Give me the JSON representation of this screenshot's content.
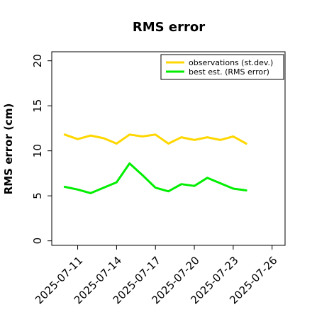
{
  "chart_data": {
    "type": "line",
    "title": "RMS error",
    "ylabel": "RMS error (cm)",
    "xlabel": "",
    "ylim": [
      -0.5,
      21
    ],
    "yticks": [
      0,
      5,
      10,
      15,
      20
    ],
    "x_dates": [
      "2025-07-10",
      "2025-07-11",
      "2025-07-12",
      "2025-07-13",
      "2025-07-14",
      "2025-07-15",
      "2025-07-16",
      "2025-07-17",
      "2025-07-18",
      "2025-07-19",
      "2025-07-20",
      "2025-07-21",
      "2025-07-22",
      "2025-07-23",
      "2025-07-24"
    ],
    "xlim": [
      "2025-07-09",
      "2025-07-27"
    ],
    "xtick_labels": [
      "2025-07-11",
      "2025-07-14",
      "2025-07-17",
      "2025-07-20",
      "2025-07-23",
      "2025-07-26"
    ],
    "xtick_colors": [
      "#000000",
      "#000000",
      "#228b22",
      "#000000",
      "#000000",
      "#000000"
    ],
    "series": [
      {
        "name": "observations (st.dev.)",
        "color": "#ffd700",
        "values": [
          11.8,
          11.3,
          11.7,
          11.4,
          10.8,
          11.8,
          11.6,
          11.8,
          10.8,
          11.5,
          11.2,
          11.5,
          11.2,
          11.6,
          10.8
        ]
      },
      {
        "name": "best est. (RMS error)",
        "color": "#00ee00",
        "values": [
          6.0,
          5.7,
          5.3,
          5.9,
          6.5,
          8.6,
          7.3,
          5.9,
          5.5,
          6.3,
          6.1,
          7.0,
          6.4,
          5.8,
          5.6
        ]
      }
    ],
    "legend_position": "top-right",
    "grid": false
  }
}
